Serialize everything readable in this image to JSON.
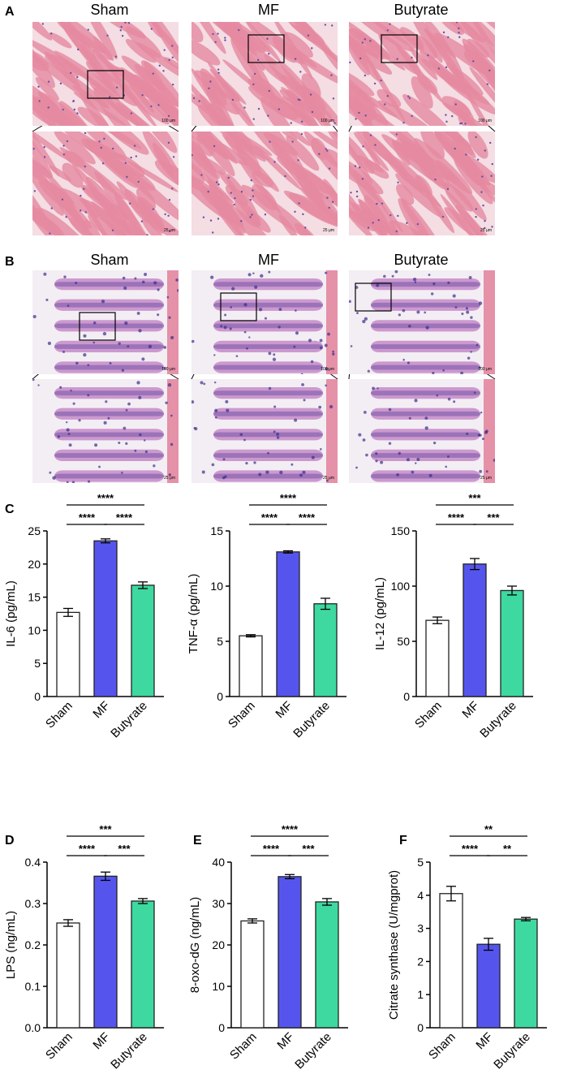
{
  "panels": {
    "A": {
      "letter": "A",
      "columns": [
        "Sham",
        "MF",
        "Butyrate"
      ],
      "scale_top": "100 μm",
      "scale_bottom": "25 μm"
    },
    "B": {
      "letter": "B",
      "columns": [
        "Sham",
        "MF",
        "Butyrate"
      ],
      "scale_top": "100 μm",
      "scale_bottom": "25 μm"
    }
  },
  "chart_data": [
    {
      "id": "il6",
      "panel": "C",
      "type": "bar",
      "categories": [
        "Sham",
        "MF",
        "Butyrate"
      ],
      "values": [
        12.7,
        23.5,
        16.8
      ],
      "errors": [
        0.6,
        0.3,
        0.5
      ],
      "ylabel": "IL-6 (pg/mL)",
      "ylim": [
        0,
        25
      ],
      "yticks": [
        "0",
        "5",
        "10",
        "15",
        "20",
        "25"
      ],
      "ytick_values": [
        0,
        5,
        10,
        15,
        20,
        25
      ],
      "colors": [
        "#ffffff",
        "#5555ee",
        "#3dd9a0"
      ],
      "significance": [
        {
          "from": 0,
          "to": 1,
          "label": "****",
          "level": 1
        },
        {
          "from": 1,
          "to": 2,
          "label": "****",
          "level": 1
        },
        {
          "from": 0,
          "to": 2,
          "label": "****",
          "level": 2
        }
      ]
    },
    {
      "id": "tnfa",
      "panel": "",
      "type": "bar",
      "categories": [
        "Sham",
        "MF",
        "Butyrate"
      ],
      "values": [
        5.5,
        13.1,
        8.4
      ],
      "errors": [
        0.1,
        0.1,
        0.5
      ],
      "ylabel": "TNF-α (pg/mL)",
      "ylim": [
        0,
        15
      ],
      "yticks": [
        "0",
        "5",
        "10",
        "15"
      ],
      "ytick_values": [
        0,
        5,
        10,
        15
      ],
      "colors": [
        "#ffffff",
        "#5555ee",
        "#3dd9a0"
      ],
      "significance": [
        {
          "from": 0,
          "to": 1,
          "label": "****",
          "level": 1
        },
        {
          "from": 1,
          "to": 2,
          "label": "****",
          "level": 1
        },
        {
          "from": 0,
          "to": 2,
          "label": "****",
          "level": 2
        }
      ]
    },
    {
      "id": "il12",
      "panel": "",
      "type": "bar",
      "categories": [
        "Sham",
        "MF",
        "Butyrate"
      ],
      "values": [
        69,
        120,
        96
      ],
      "errors": [
        3,
        5,
        4
      ],
      "ylabel": "IL-12 (pg/mL)",
      "ylim": [
        0,
        150
      ],
      "yticks": [
        "0",
        "50",
        "100",
        "150"
      ],
      "ytick_values": [
        0,
        50,
        100,
        150
      ],
      "colors": [
        "#ffffff",
        "#5555ee",
        "#3dd9a0"
      ],
      "significance": [
        {
          "from": 0,
          "to": 1,
          "label": "****",
          "level": 1
        },
        {
          "from": 1,
          "to": 2,
          "label": "***",
          "level": 1
        },
        {
          "from": 0,
          "to": 2,
          "label": "***",
          "level": 2
        }
      ]
    },
    {
      "id": "lps",
      "panel": "D",
      "type": "bar",
      "categories": [
        "Sham",
        "MF",
        "Butyrate"
      ],
      "values": [
        0.253,
        0.366,
        0.306
      ],
      "errors": [
        0.008,
        0.01,
        0.006
      ],
      "ylabel": "LPS (ng/mL)",
      "ylim": [
        0,
        0.4
      ],
      "yticks": [
        "0.0",
        "0.1",
        "0.2",
        "0.3",
        "0.4"
      ],
      "ytick_values": [
        0,
        0.1,
        0.2,
        0.3,
        0.4
      ],
      "colors": [
        "#ffffff",
        "#5555ee",
        "#3dd9a0"
      ],
      "significance": [
        {
          "from": 0,
          "to": 1,
          "label": "****",
          "level": 1
        },
        {
          "from": 1,
          "to": 2,
          "label": "***",
          "level": 1
        },
        {
          "from": 0,
          "to": 2,
          "label": "***",
          "level": 2
        }
      ]
    },
    {
      "id": "oxodg",
      "panel": "E",
      "type": "bar",
      "categories": [
        "Sham",
        "MF",
        "Butyrate"
      ],
      "values": [
        25.8,
        36.5,
        30.4
      ],
      "errors": [
        0.5,
        0.5,
        0.8
      ],
      "ylabel": "8-oxo-dG (ng/mL)",
      "ylim": [
        0,
        40
      ],
      "yticks": [
        "0",
        "10",
        "20",
        "30",
        "40"
      ],
      "ytick_values": [
        0,
        10,
        20,
        30,
        40
      ],
      "colors": [
        "#ffffff",
        "#5555ee",
        "#3dd9a0"
      ],
      "significance": [
        {
          "from": 0,
          "to": 1,
          "label": "****",
          "level": 1
        },
        {
          "from": 1,
          "to": 2,
          "label": "***",
          "level": 1
        },
        {
          "from": 0,
          "to": 2,
          "label": "****",
          "level": 2
        }
      ]
    },
    {
      "id": "cs",
      "panel": "F",
      "type": "bar",
      "categories": [
        "Sham",
        "MF",
        "Butyrate"
      ],
      "values": [
        4.05,
        2.52,
        3.28
      ],
      "errors": [
        0.22,
        0.18,
        0.05
      ],
      "ylabel": "Citrate synthase (U/mgprot)",
      "ylim": [
        0,
        5
      ],
      "yticks": [
        "0",
        "1",
        "2",
        "3",
        "4",
        "5"
      ],
      "ytick_values": [
        0,
        1,
        2,
        3,
        4,
        5
      ],
      "colors": [
        "#ffffff",
        "#5555ee",
        "#3dd9a0"
      ],
      "significance": [
        {
          "from": 0,
          "to": 1,
          "label": "****",
          "level": 1
        },
        {
          "from": 1,
          "to": 2,
          "label": "**",
          "level": 1
        },
        {
          "from": 0,
          "to": 2,
          "label": "**",
          "level": 2
        }
      ]
    }
  ]
}
